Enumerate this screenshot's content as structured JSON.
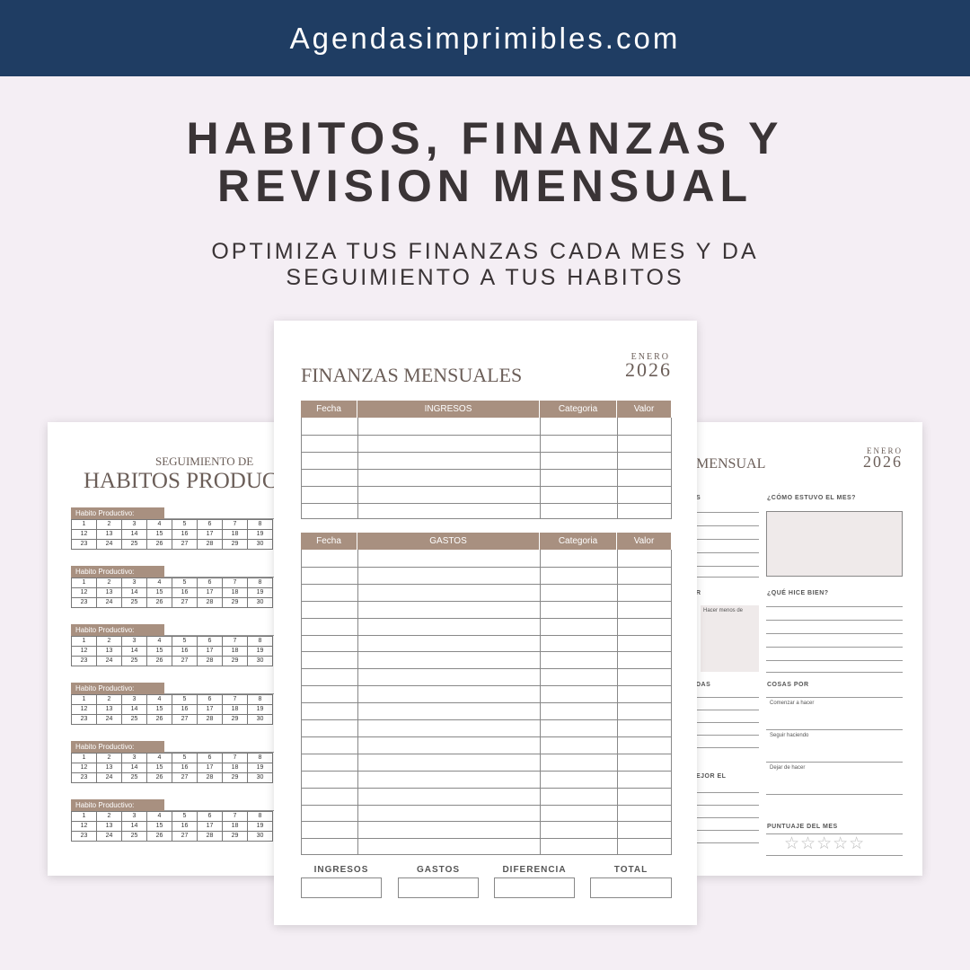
{
  "header": {
    "site": "Agendasimprimibles.com"
  },
  "hero": {
    "title_line1": "HABITOS, FINANZAS Y",
    "title_line2": "REVISION MENSUAL",
    "subtitle_line1": "OPTIMIZA TUS FINANZAS CADA MES Y DA",
    "subtitle_line2": "SEGUIMIENTO A TUS HABITOS"
  },
  "habits_page": {
    "title_small": "SEGUIMIENTO DE",
    "title_large": "HABITOS PRODUCT",
    "block_label": "Habito Productivo:",
    "rows": [
      [
        "1",
        "2",
        "3",
        "4",
        "5",
        "6",
        "7",
        "8"
      ],
      [
        "12",
        "13",
        "14",
        "15",
        "16",
        "17",
        "18",
        "19"
      ],
      [
        "23",
        "24",
        "25",
        "26",
        "27",
        "28",
        "29",
        "30"
      ]
    ]
  },
  "finance_page": {
    "title": "FINANZAS MENSUALES",
    "month": "ENERO",
    "year": "2026",
    "income_headers": [
      "Fecha",
      "INGRESOS",
      "Categoria",
      "Valor"
    ],
    "expense_headers": [
      "Fecha",
      "GASTOS",
      "Categoria",
      "Valor"
    ],
    "totals": [
      "INGRESOS",
      "GASTOS",
      "DIFERENCIA",
      "TOTAL"
    ]
  },
  "review_page": {
    "title": "MENSUAL",
    "month": "ENERO",
    "year": "2026",
    "left_labels": [
      "S",
      "R",
      "DAS",
      "EJOR EL"
    ],
    "left_box": "Hacer menos de",
    "q1": "¿CÓMO ESTUVO EL MES?",
    "q2": "¿QUÉ HICE BIEN?",
    "q3": "COSAS POR",
    "q3_items": [
      "Comenzar a hacer",
      "Seguir haciendo",
      "Dejar de hacer"
    ],
    "score": "PUNTUAJE DEL MES",
    "stars": "☆☆☆☆☆"
  }
}
